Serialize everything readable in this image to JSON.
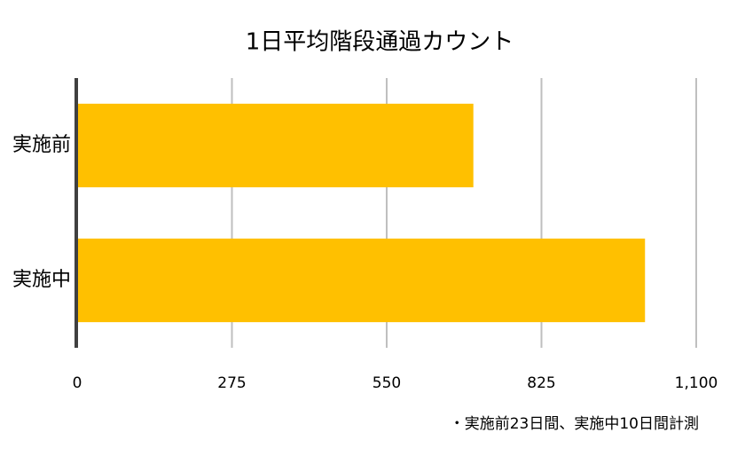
{
  "chart_data": {
    "type": "barh",
    "title": "1日平均階段通過カウント",
    "categories": [
      "実施前",
      "実施中"
    ],
    "values": [
      704,
      1009
    ],
    "color": "#ffc000",
    "xlim": [
      0,
      1100
    ],
    "xticks": [
      0,
      275,
      550,
      825,
      {
        "value": 1100,
        "label": "1,100"
      }
    ],
    "grid": true,
    "annotation": "・実施前23日間、実施中10日間計測"
  }
}
